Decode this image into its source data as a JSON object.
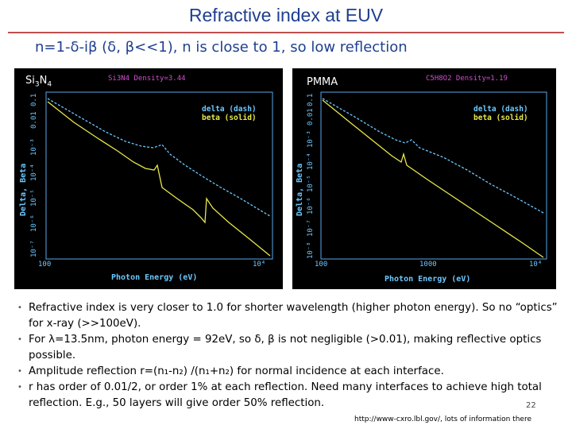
{
  "title": "Refractive index at EUV",
  "subtitle": "n=1-δ-iβ (δ, β<<1), n is close to 1, so low reflection",
  "plots": {
    "left": {
      "label_main": "Si",
      "label_sub1": "3",
      "label_mid": "N",
      "label_sub2": "4",
      "header": "Si3N4 Density=3.44",
      "legend_delta": "delta (dash)",
      "legend_beta": "beta (solid)",
      "ylabel": "Delta, Beta",
      "xlabel": "Photon Energy (eV)",
      "xticks": [
        "100",
        "10⁴"
      ],
      "yticks": [
        "10⁻⁷",
        "10⁻⁶",
        "10⁻⁵",
        "10⁻⁴",
        "10⁻³",
        "0.01",
        "0.1"
      ]
    },
    "right": {
      "label": "PMMA",
      "header": "C5H8O2 Density=1.19",
      "legend_delta": "delta (dash)",
      "legend_beta": "beta (solid)",
      "ylabel": "Delta, Beta",
      "xlabel": "Photon Energy (eV)",
      "xticks": [
        "100",
        "1000",
        "10⁴"
      ],
      "yticks": [
        "10⁻⁸",
        "10⁻⁷",
        "10⁻⁶",
        "10⁻⁵",
        "10⁻⁴",
        "10⁻³",
        "0.01",
        "0.1"
      ]
    }
  },
  "bullets": [
    "Refractive index is very closer to 1.0 for shorter wavelength (higher photon energy). So no “optics” for x-ray (>>100eV).",
    "For λ=13.5nm, photon energy = 92eV, so δ, β is not negligible (>0.01), making reflective optics possible.",
    "Amplitude reflection r=(n₁-n₂) /(n₁+n₂) for normal incidence at each interface.",
    "r has order of 0.01/2, or order 1% at each reflection. Need many interfaces to achieve high total reflection. E.g., 50 layers will give order 50% reflection."
  ],
  "page_number": "22",
  "footer_url": "http://www-cxro.lbl.gov/, lots of information there",
  "colors": {
    "title": "#1f3f8f",
    "rule": "#c0504d",
    "delta": "#6cc8ff",
    "beta": "#e8e84a"
  }
}
